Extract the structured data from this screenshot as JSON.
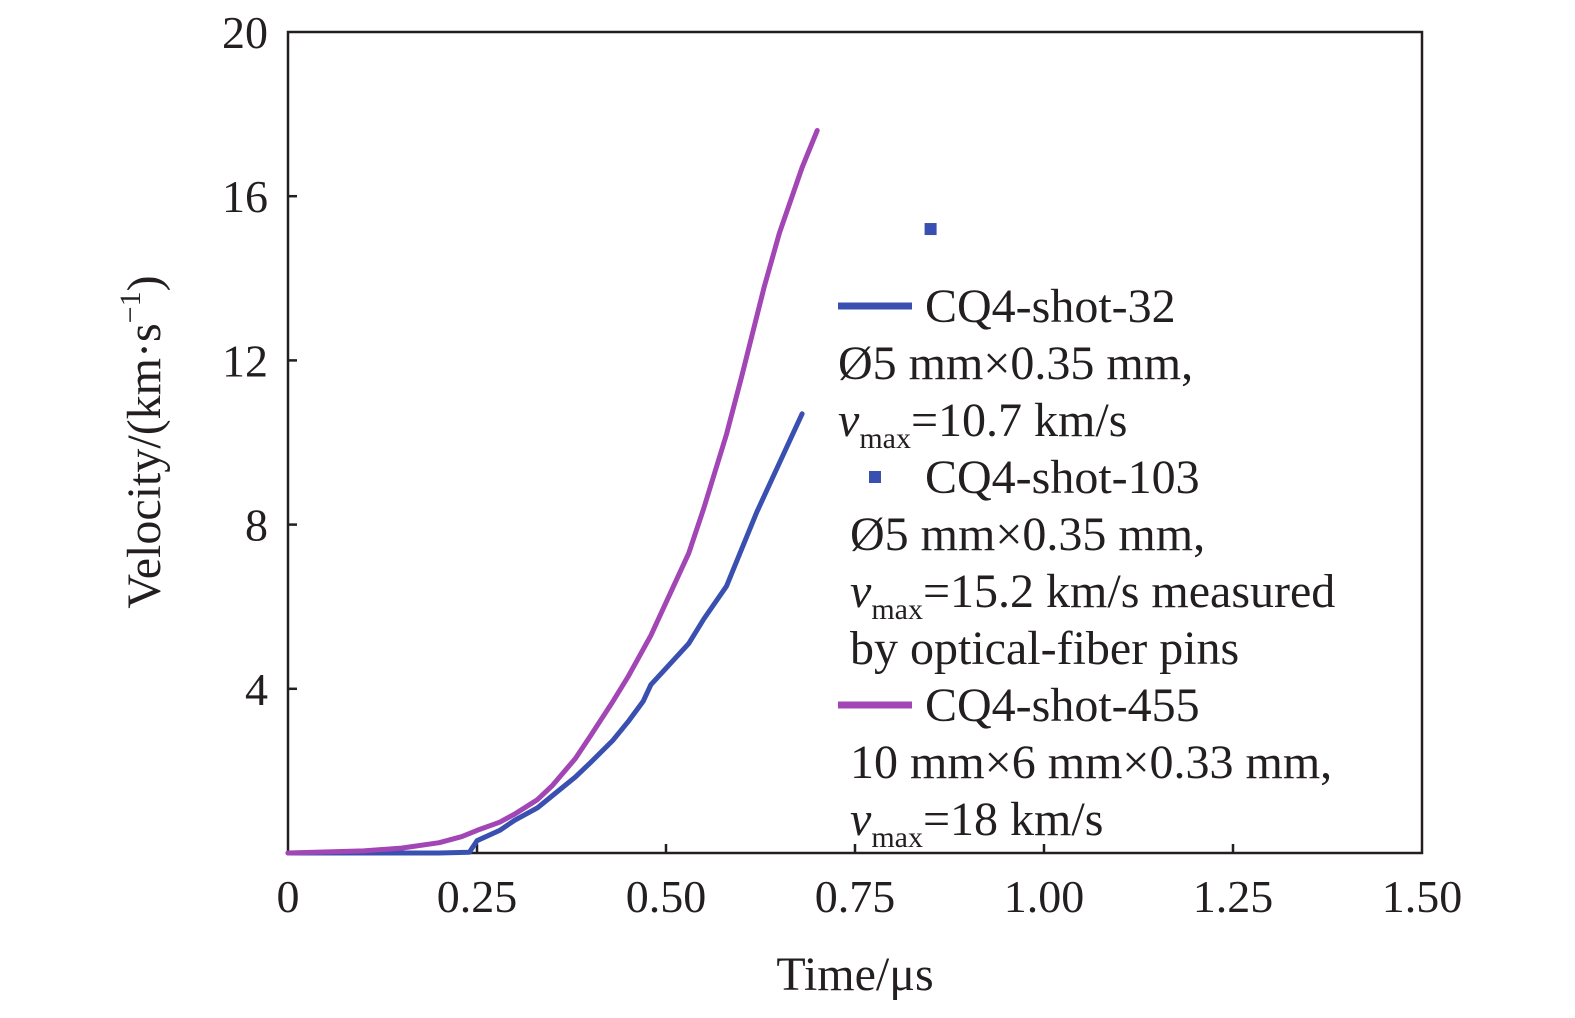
{
  "chart_data": {
    "type": "line",
    "title": "",
    "xlabel": "Time/μs",
    "ylabel": "Velocity/(km·s",
    "ylabel_exponent": "−1",
    "ylabel_close": ")",
    "xlim": [
      0,
      1.5
    ],
    "ylim": [
      0,
      20
    ],
    "x_ticks": [
      0,
      0.25,
      0.5,
      0.75,
      1.0,
      1.25,
      1.5
    ],
    "x_tick_labels": [
      "0",
      "0.25",
      "0.50",
      "0.75",
      "1.00",
      "1.25",
      "1.50"
    ],
    "y_ticks": [
      4,
      8,
      12,
      16,
      20
    ],
    "y_tick_labels": [
      "4",
      "8",
      "12",
      "16",
      "20"
    ],
    "grid": false,
    "legend_position": "right",
    "series": [
      {
        "name": "CQ4-shot-32",
        "style": "line",
        "color": "#3a50b0",
        "x": [
          0,
          0.1,
          0.2,
          0.24,
          0.25,
          0.28,
          0.3,
          0.33,
          0.35,
          0.38,
          0.4,
          0.43,
          0.45,
          0.47,
          0.48,
          0.5,
          0.53,
          0.55,
          0.58,
          0.6,
          0.62,
          0.65,
          0.68
        ],
        "y": [
          0,
          0,
          0,
          0.02,
          0.3,
          0.55,
          0.8,
          1.1,
          1.4,
          1.85,
          2.2,
          2.75,
          3.2,
          3.7,
          4.1,
          4.5,
          5.1,
          5.7,
          6.5,
          7.4,
          8.3,
          9.5,
          10.7
        ]
      },
      {
        "name": "CQ4-shot-103",
        "style": "marker",
        "color": "#3a50b0",
        "x": [
          0.85
        ],
        "y": [
          15.2
        ]
      },
      {
        "name": "CQ4-shot-455",
        "style": "line",
        "color": "#a146b4",
        "x": [
          0,
          0.1,
          0.15,
          0.2,
          0.23,
          0.25,
          0.28,
          0.3,
          0.33,
          0.35,
          0.38,
          0.4,
          0.43,
          0.45,
          0.48,
          0.5,
          0.53,
          0.55,
          0.58,
          0.6,
          0.63,
          0.65,
          0.68,
          0.7
        ],
        "y": [
          0,
          0.05,
          0.12,
          0.25,
          0.4,
          0.55,
          0.75,
          0.95,
          1.3,
          1.65,
          2.3,
          2.85,
          3.7,
          4.3,
          5.3,
          6.1,
          7.3,
          8.4,
          10.2,
          11.6,
          13.8,
          15.1,
          16.7,
          17.6
        ]
      }
    ],
    "legend": [
      {
        "series": "CQ4-shot-32",
        "symbol": "line",
        "label": "CQ4-shot-32",
        "lines": [
          {
            "parts": [
              {
                "t": "Ø5 mm×0.35 mm,"
              }
            ]
          },
          {
            "parts": [
              {
                "t": "v",
                "italic": true
              },
              {
                "t": "max",
                "sub": true
              },
              {
                "t": "=10.7 km/s"
              }
            ]
          }
        ]
      },
      {
        "series": "CQ4-shot-103",
        "symbol": "marker",
        "label": "CQ4-shot-103",
        "lines": [
          {
            "parts": [
              {
                "t": "Ø5 mm×0.35 mm,"
              }
            ]
          },
          {
            "parts": [
              {
                "t": "v",
                "italic": true
              },
              {
                "t": "max",
                "sub": true
              },
              {
                "t": "=15.2 km/s measured"
              }
            ]
          },
          {
            "parts": [
              {
                "t": "by optical-fiber pins"
              }
            ]
          }
        ]
      },
      {
        "series": "CQ4-shot-455",
        "symbol": "line",
        "label": "CQ4-shot-455",
        "lines": [
          {
            "parts": [
              {
                "t": "10 mm×6 mm×0.33 mm,"
              }
            ]
          },
          {
            "parts": [
              {
                "t": "v",
                "italic": true
              },
              {
                "t": "max",
                "sub": true
              },
              {
                "t": "=18 km/s"
              }
            ]
          }
        ]
      }
    ]
  }
}
